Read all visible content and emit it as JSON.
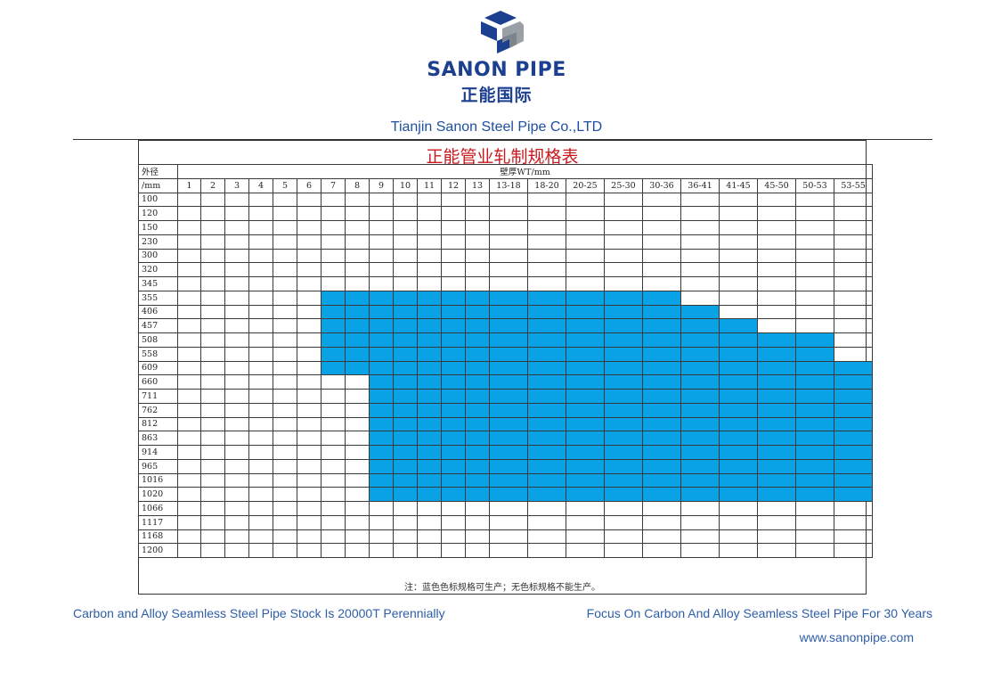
{
  "header": {
    "brand_name": "SANON PIPE",
    "brand_cn": "正能国际",
    "company": "Tianjin Sanon Steel Pipe Co.,LTD",
    "logo_colors": {
      "blue": "#1d3f8f",
      "gray": "#9aa0a6"
    }
  },
  "sheet": {
    "title": "正能管业轧制规格表",
    "od_label_top": "外径",
    "od_label_bottom": "/mm",
    "wt_label": "壁厚WT/mm",
    "wt_columns": [
      "1",
      "2",
      "3",
      "4",
      "5",
      "6",
      "7",
      "8",
      "9",
      "10",
      "11",
      "12",
      "13",
      "13-18",
      "18-20",
      "20-25",
      "25-30",
      "30-36",
      "36-41",
      "41-45",
      "45-50",
      "50-53",
      "53-55"
    ],
    "rows": [
      {
        "od": "100",
        "from": -1,
        "to": -1
      },
      {
        "od": "120",
        "from": -1,
        "to": -1
      },
      {
        "od": "150",
        "from": -1,
        "to": -1
      },
      {
        "od": "230",
        "from": -1,
        "to": -1
      },
      {
        "od": "300",
        "from": -1,
        "to": -1
      },
      {
        "od": "320",
        "from": -1,
        "to": -1
      },
      {
        "od": "345",
        "from": -1,
        "to": -1
      },
      {
        "od": "355",
        "from": 6,
        "to": 17
      },
      {
        "od": "406",
        "from": 6,
        "to": 18
      },
      {
        "od": "457",
        "from": 6,
        "to": 19
      },
      {
        "od": "508",
        "from": 6,
        "to": 21
      },
      {
        "od": "558",
        "from": 6,
        "to": 21
      },
      {
        "od": "609",
        "from": 6,
        "to": 22
      },
      {
        "od": "660",
        "from": 8,
        "to": 22
      },
      {
        "od": "711",
        "from": 8,
        "to": 22
      },
      {
        "od": "762",
        "from": 8,
        "to": 22
      },
      {
        "od": "812",
        "from": 8,
        "to": 22
      },
      {
        "od": "863",
        "from": 8,
        "to": 22
      },
      {
        "od": "914",
        "from": 8,
        "to": 22
      },
      {
        "od": "965",
        "from": 8,
        "to": 22
      },
      {
        "od": "1016",
        "from": 8,
        "to": 22
      },
      {
        "od": "1020",
        "from": 8,
        "to": 22
      },
      {
        "od": "1066",
        "from": -1,
        "to": -1
      },
      {
        "od": "1117",
        "from": -1,
        "to": -1
      },
      {
        "od": "1168",
        "from": -1,
        "to": -1
      },
      {
        "od": "1200",
        "from": -1,
        "to": -1
      }
    ],
    "available_color": "#0aa2e6",
    "note": "注：蓝色色标规格可生产；无色标规格不能生产。"
  },
  "footer": {
    "left": "Carbon and Alloy Seamless Steel  Pipe Stock Is 20000T Perennially",
    "right": "Focus On Carbon And Alloy Seamless Steel Pipe For 30 Years",
    "website": "www.sanonpipe.com"
  }
}
